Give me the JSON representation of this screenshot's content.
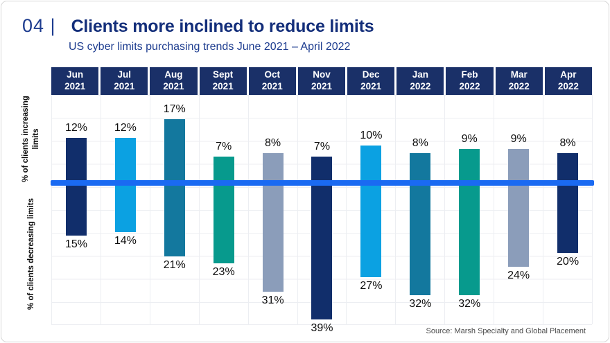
{
  "card": {
    "slide_number": "04 |",
    "title": "Clients more inclined to reduce limits",
    "subtitle": "US cyber limits purchasing trends June 2021 – April 2022"
  },
  "axis_labels": {
    "top": "% of clients increasing limits",
    "bottom": "% of clients decreasing limits"
  },
  "source": "Source: Marsh Specialty and Global Placement",
  "colors": {
    "navy": "#112e6b",
    "cyan": "#0ba1e2",
    "steel_blue": "#13789e",
    "teal": "#079a8d",
    "gray_blue": "#8b9dba",
    "zero_line": "#1a6af2",
    "header_bg": "#1a3068",
    "grid": "#eceef2",
    "title_text": "#132e7a",
    "subtitle_text": "#1d3c8f"
  },
  "chart_data": {
    "type": "bar",
    "orientation": "diverging-vertical",
    "categories": [
      {
        "month": "Jun",
        "year": "2021"
      },
      {
        "month": "Jul",
        "year": "2021"
      },
      {
        "month": "Aug",
        "year": "2021"
      },
      {
        "month": "Sept",
        "year": "2021"
      },
      {
        "month": "Oct",
        "year": "2021"
      },
      {
        "month": "Nov",
        "year": "2021"
      },
      {
        "month": "Dec",
        "year": "2021"
      },
      {
        "month": "Jan",
        "year": "2022"
      },
      {
        "month": "Feb",
        "year": "2022"
      },
      {
        "month": "Mar",
        "year": "2022"
      },
      {
        "month": "Apr",
        "year": "2022"
      }
    ],
    "series": [
      {
        "name": "% of clients increasing limits",
        "direction": "up",
        "values": [
          12,
          12,
          17,
          7,
          8,
          7,
          10,
          8,
          9,
          9,
          8
        ]
      },
      {
        "name": "% of clients decreasing limits",
        "direction": "down",
        "values": [
          15,
          14,
          21,
          23,
          31,
          39,
          27,
          32,
          32,
          24,
          20
        ]
      }
    ],
    "bar_color_keys": [
      "navy",
      "cyan",
      "steel_blue",
      "teal",
      "gray_blue",
      "navy",
      "cyan",
      "steel_blue",
      "teal",
      "gray_blue",
      "navy"
    ],
    "value_suffix": "%",
    "title": "Clients more inclined to reduce limits",
    "subtitle": "US cyber limits purchasing trends June 2021 – April 2022",
    "legend_position": "none",
    "grid": true,
    "baseline_marker": "thick blue horizontal line at zero"
  }
}
